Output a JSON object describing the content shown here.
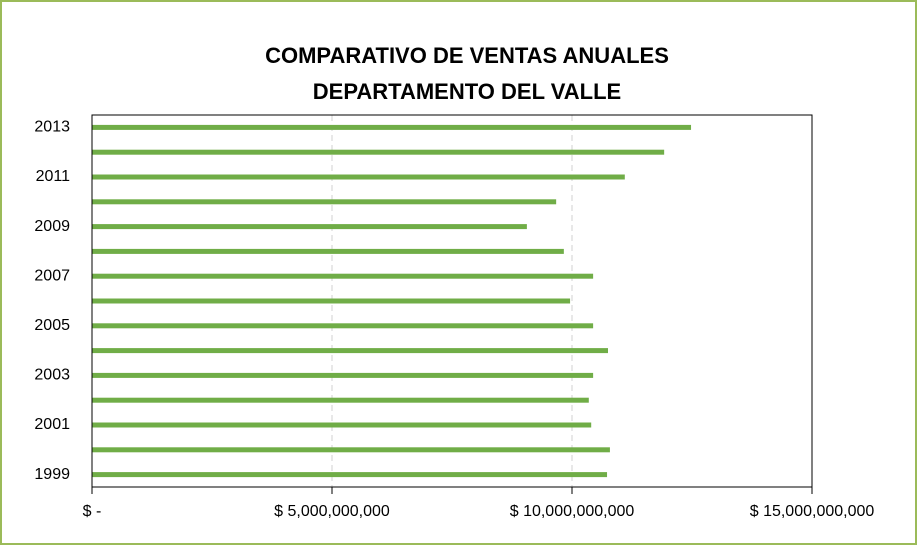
{
  "chart_data": {
    "type": "bar",
    "orientation": "horizontal",
    "title": "COMPARATIVO DE VENTAS ANUALES DEPARTAMENTO DEL VALLE",
    "categories": [
      "1999",
      null,
      "2001",
      null,
      "2003",
      null,
      "2005",
      null,
      "2007",
      null,
      "2009",
      null,
      "2011",
      null,
      "2013"
    ],
    "values": [
      10730000000,
      10790000000,
      10400000000,
      10350000000,
      10440000000,
      10750000000,
      10440000000,
      9960000000,
      10440000000,
      9830000000,
      9060000000,
      9670000000,
      11100000000,
      11920000000,
      12480000000
    ],
    "color": "#70ad47",
    "xlim": [
      0,
      15000000000
    ],
    "xticks": [
      {
        "value": 0,
        "label": "$ -"
      },
      {
        "value": 5000000000,
        "label": "$ 5,000,000,000"
      },
      {
        "value": 10000000000,
        "label": "$ 10,000,000,000"
      },
      {
        "value": 15000000000,
        "label": "$ 15,000,000,000"
      }
    ],
    "grid": true
  }
}
